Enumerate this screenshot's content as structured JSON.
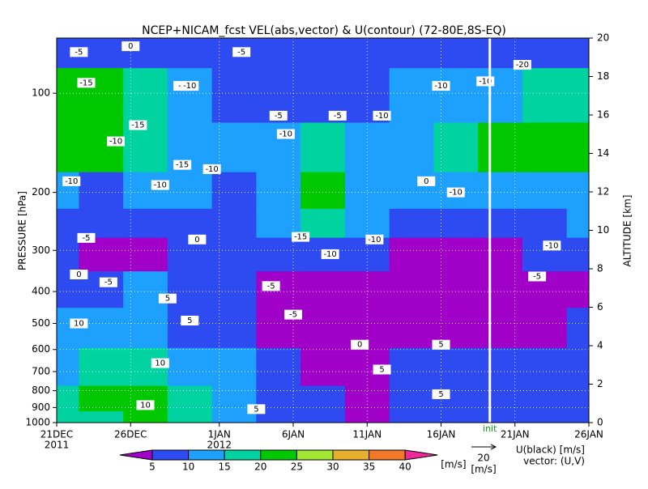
{
  "chart_data": {
    "type": "contourf",
    "title": "NCEP+NICAM_fcst VEL(abs,vector) & U(contour)   (72-80E,8S-EQ)",
    "ylabel": "PRESSURE [hPa]",
    "y2label": "ALTITUDE [km]",
    "xlim": [
      0,
      36
    ],
    "xticks": [
      {
        "value": 0,
        "label": "21DEC"
      },
      {
        "value": 5,
        "label": "26DEC"
      },
      {
        "value": 11,
        "label": "1JAN"
      },
      {
        "value": 16,
        "label": "6JAN"
      },
      {
        "value": 21,
        "label": "11JAN"
      },
      {
        "value": 26,
        "label": "16JAN"
      },
      {
        "value": 31,
        "label": "21JAN"
      },
      {
        "value": 36,
        "label": "26JAN"
      }
    ],
    "year_labels": [
      {
        "value": 0,
        "label": "2011"
      },
      {
        "value": 11,
        "label": "2012"
      }
    ],
    "ylim": [
      1000,
      68
    ],
    "log_y": true,
    "yticks": [
      100,
      200,
      300,
      400,
      500,
      600,
      700,
      800,
      900,
      1000
    ],
    "y2lim": [
      0,
      20
    ],
    "y2ticks": [
      0,
      2,
      4,
      6,
      8,
      10,
      12,
      14,
      16,
      18,
      20
    ],
    "init": {
      "value": 29.3,
      "label": "init"
    },
    "x": [
      0,
      3,
      6,
      9,
      12,
      15,
      18,
      21,
      24,
      27,
      30,
      33,
      36
    ],
    "levels_p": [
      1000,
      850,
      700,
      500,
      400,
      300,
      250,
      200,
      150,
      100,
      70
    ],
    "z": [
      [
        15,
        18,
        20,
        17,
        12,
        8,
        5,
        4,
        6,
        8,
        5,
        6,
        7
      ],
      [
        16,
        20,
        21,
        18,
        13,
        9,
        5,
        4,
        6,
        9,
        6,
        6,
        7
      ],
      [
        14,
        18,
        17,
        14,
        10,
        6,
        4,
        3,
        5,
        7,
        5,
        5,
        6
      ],
      [
        11,
        13,
        12,
        9,
        6,
        4,
        3,
        3,
        4,
        4,
        4,
        4,
        5
      ],
      [
        8,
        9,
        10,
        7,
        5,
        4,
        3,
        3,
        3,
        3,
        4,
        4,
        4
      ],
      [
        6,
        4,
        4,
        5,
        7,
        8,
        8,
        5,
        4,
        4,
        4,
        6,
        7
      ],
      [
        8,
        7,
        8,
        9,
        9,
        10,
        18,
        10,
        9,
        8,
        8,
        9,
        10
      ],
      [
        11,
        9,
        10,
        10,
        9,
        11,
        22,
        12,
        11,
        11,
        12,
        13,
        12
      ],
      [
        21,
        23,
        18,
        12,
        10,
        12,
        16,
        12,
        13,
        18,
        20,
        22,
        21
      ],
      [
        23,
        22,
        15,
        11,
        9,
        8,
        5,
        9,
        10,
        12,
        14,
        17,
        15
      ],
      [
        8,
        7,
        6,
        7,
        6,
        7,
        6,
        7,
        8,
        7,
        6,
        6,
        8
      ]
    ],
    "colorbar_levels": [
      5,
      10,
      15,
      20,
      25,
      30,
      35,
      40
    ],
    "colors": [
      "#a000c8",
      "#2d4bf0",
      "#1ea0ff",
      "#00d2a0",
      "#00c800",
      "#a0e632",
      "#e6af2d",
      "#f07828",
      "#f0289b"
    ],
    "colorbar_unit": "[m/s]",
    "contour_labels": [
      {
        "x": 1.5,
        "y": 75,
        "level": -5
      },
      {
        "x": 5,
        "y": 72,
        "level": 0
      },
      {
        "x": 12.5,
        "y": 75,
        "level": -5
      },
      {
        "x": 2,
        "y": 93,
        "level": -15
      },
      {
        "x": 8.5,
        "y": 95,
        "level": -5
      },
      {
        "x": 9,
        "y": 95,
        "level": -10
      },
      {
        "x": 5.5,
        "y": 125,
        "level": -15
      },
      {
        "x": 4,
        "y": 140,
        "level": -10
      },
      {
        "x": 15,
        "y": 117,
        "level": -5
      },
      {
        "x": 15.5,
        "y": 133,
        "level": -10
      },
      {
        "x": 19,
        "y": 117,
        "level": -5
      },
      {
        "x": 22,
        "y": 117,
        "level": -10
      },
      {
        "x": 26,
        "y": 95,
        "level": -10
      },
      {
        "x": 29,
        "y": 92,
        "level": -10
      },
      {
        "x": 31.5,
        "y": 82,
        "level": -20
      },
      {
        "x": 1,
        "y": 185,
        "level": -10
      },
      {
        "x": 7,
        "y": 190,
        "level": -10
      },
      {
        "x": 10.5,
        "y": 170,
        "level": -10
      },
      {
        "x": 8.5,
        "y": 165,
        "level": -15
      },
      {
        "x": 25,
        "y": 185,
        "level": 0
      },
      {
        "x": 27,
        "y": 200,
        "level": -10
      },
      {
        "x": 2,
        "y": 275,
        "level": -5
      },
      {
        "x": 9.5,
        "y": 278,
        "level": 0
      },
      {
        "x": 16.5,
        "y": 273,
        "level": -15
      },
      {
        "x": 18.5,
        "y": 308,
        "level": -10
      },
      {
        "x": 21.5,
        "y": 278,
        "level": -10
      },
      {
        "x": 33.5,
        "y": 290,
        "level": -10
      },
      {
        "x": 1.5,
        "y": 355,
        "level": 0
      },
      {
        "x": 3.5,
        "y": 375,
        "level": -5
      },
      {
        "x": 7.5,
        "y": 420,
        "level": 5
      },
      {
        "x": 14.5,
        "y": 385,
        "level": -5
      },
      {
        "x": 16,
        "y": 470,
        "level": -5
      },
      {
        "x": 32.5,
        "y": 360,
        "level": -5
      },
      {
        "x": 1.5,
        "y": 500,
        "level": 10
      },
      {
        "x": 9,
        "y": 490,
        "level": 5
      },
      {
        "x": 20.5,
        "y": 580,
        "level": 0
      },
      {
        "x": 7,
        "y": 660,
        "level": 10
      },
      {
        "x": 22,
        "y": 690,
        "level": 5
      },
      {
        "x": 26,
        "y": 820,
        "level": 5
      },
      {
        "x": 6,
        "y": 885,
        "level": 10
      },
      {
        "x": 13.5,
        "y": 910,
        "level": 5
      },
      {
        "x": 26,
        "y": 580,
        "level": 5
      }
    ],
    "vector_reference": {
      "value": 20,
      "unit": "[m/s]"
    },
    "legend_texts": [
      "U(black) [m/s]",
      "vector: (U,V)"
    ]
  }
}
